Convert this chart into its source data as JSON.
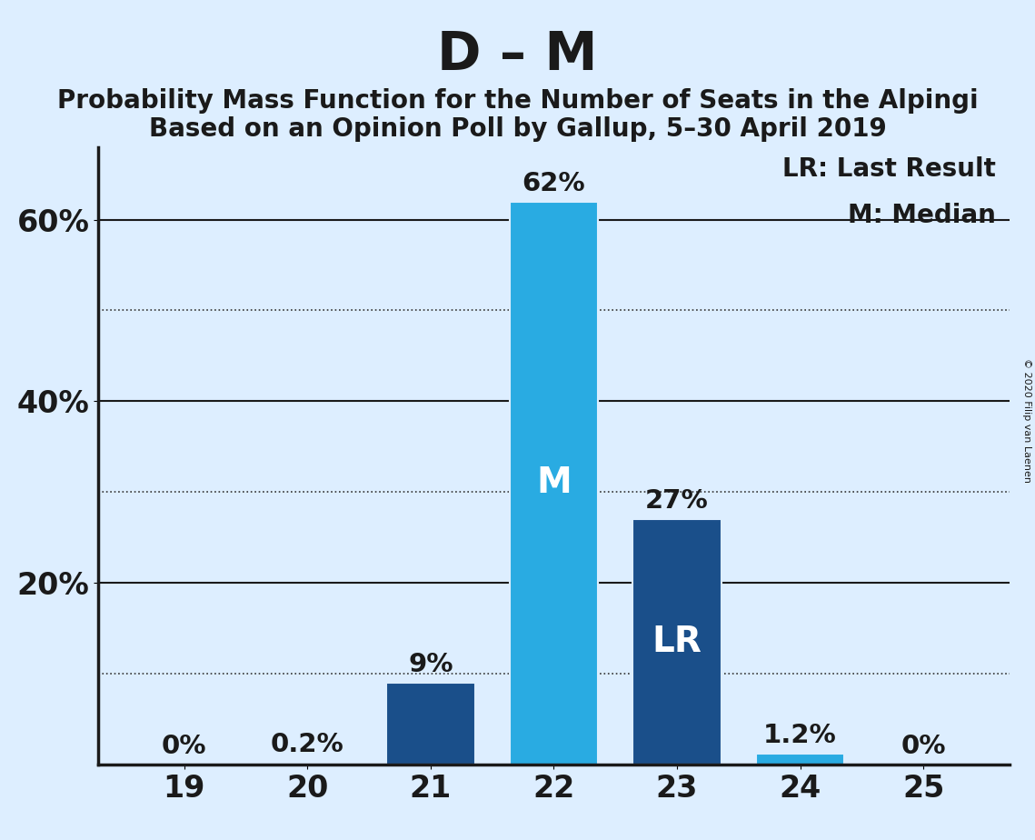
{
  "title": "D – M",
  "subtitle_line1": "Probability Mass Function for the Number of Seats in the Alpingi",
  "subtitle_line2": "Based on an Opinion Poll by Gallup, 5–30 April 2019",
  "copyright": "© 2020 Filip van Laenen",
  "categories": [
    19,
    20,
    21,
    22,
    23,
    24,
    25
  ],
  "values": [
    0.0,
    0.2,
    9.0,
    62.0,
    27.0,
    1.2,
    0.0
  ],
  "bar_colors": [
    "#1a4f8a",
    "#1a4f8a",
    "#1a4f8a",
    "#29abe2",
    "#1a4f8a",
    "#29abe2",
    "#1a4f8a"
  ],
  "labels": [
    "0%",
    "0.2%",
    "9%",
    "62%",
    "27%",
    "1.2%",
    "0%"
  ],
  "bar_labels": [
    "",
    "",
    "",
    "M",
    "LR",
    "",
    ""
  ],
  "bar_label_color": "#ffffff",
  "bar_label_fontsize": 28,
  "legend_text": [
    "LR: Last Result",
    "M: Median"
  ],
  "background_color": "#ddeeff",
  "title_fontsize": 42,
  "subtitle_fontsize": 20,
  "ytick_labels": [
    "20%",
    "40%",
    "60%"
  ],
  "ytick_values": [
    20,
    40,
    60
  ],
  "solid_grid_values": [
    20,
    40,
    60
  ],
  "dotted_grid_values": [
    10,
    30,
    50
  ],
  "ylim": [
    0,
    68
  ],
  "tick_fontsize": 24,
  "annotation_fontsize": 21,
  "legend_fontsize": 20,
  "solid_grid_color": "#1a1a1a",
  "dotted_grid_color": "#333333",
  "axis_color": "#1a1a1a",
  "text_color": "#1a1a1a"
}
